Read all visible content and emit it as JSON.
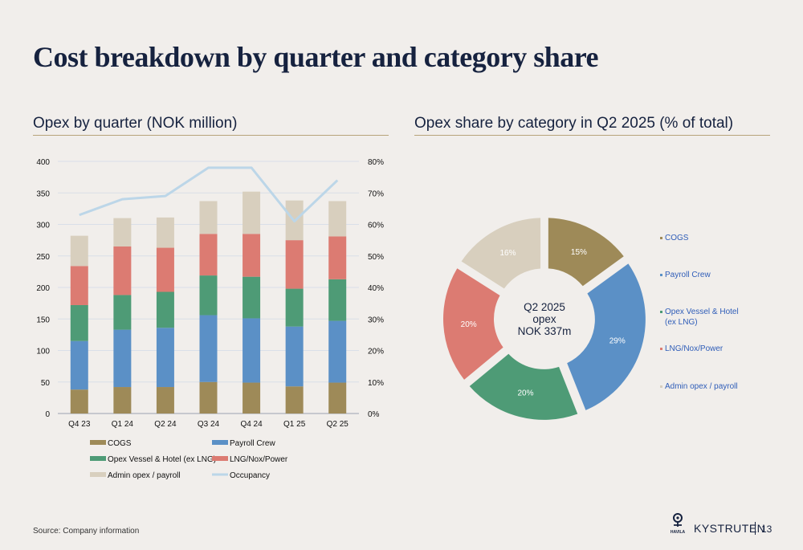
{
  "page": {
    "title": "Cost breakdown by quarter and category share",
    "source": "Source: Company information",
    "brand": "KYSTRUTEN",
    "brand_small": "HAVILA",
    "page_number": "13"
  },
  "colors": {
    "cogs": "#9e8a58",
    "payroll": "#5b90c6",
    "opex_vessel": "#4e9b76",
    "lng": "#dc7b72",
    "admin": "#d8cfbe",
    "occupancy": "#bcd6e8",
    "grid": "#d9dfe8",
    "navy": "#16223f",
    "legend_text": "#2f5db8"
  },
  "chart_data": [
    {
      "type": "bar",
      "stacked": true,
      "title": "Opex by quarter (NOK million)",
      "categories": [
        "Q4 23",
        "Q1 24",
        "Q2 24",
        "Q3 24",
        "Q4 24",
        "Q1 25",
        "Q2 25"
      ],
      "ylim": [
        0,
        400
      ],
      "yticks": [
        "0",
        "50",
        "100",
        "150",
        "200",
        "250",
        "300",
        "350",
        "400"
      ],
      "y2lim": [
        0,
        80
      ],
      "y2ticks": [
        "0%",
        "10%",
        "20%",
        "30%",
        "40%",
        "50%",
        "60%",
        "70%",
        "80%"
      ],
      "grid": true,
      "series": [
        {
          "name": "COGS",
          "key": "cogs",
          "values": [
            38,
            42,
            42,
            50,
            49,
            43,
            49
          ]
        },
        {
          "name": "Payroll Crew",
          "key": "payroll",
          "values": [
            77,
            91,
            94,
            106,
            102,
            95,
            98
          ]
        },
        {
          "name": "Opex Vessel & Hotel (ex LNG)",
          "key": "opex_vessel",
          "values": [
            57,
            55,
            57,
            63,
            66,
            60,
            66
          ]
        },
        {
          "name": "LNG/Nox/Power",
          "key": "lng",
          "values": [
            62,
            77,
            70,
            66,
            68,
            77,
            68
          ]
        },
        {
          "name": "Admin opex / payroll",
          "key": "admin",
          "values": [
            48,
            45,
            48,
            52,
            67,
            63,
            56
          ]
        }
      ],
      "line": {
        "name": "Occupancy",
        "key": "occupancy",
        "unit": "%",
        "values": [
          63,
          68,
          69,
          78,
          78,
          61,
          74
        ]
      },
      "legend": [
        "COGS",
        "Payroll Crew",
        "Opex Vessel & Hotel (ex LNG)",
        "LNG/Nox/Power",
        "Admin opex / payroll",
        "Occupancy"
      ]
    },
    {
      "type": "pie",
      "donut": true,
      "title": "Opex share by category in Q2 2025 (% of total)",
      "center_label": [
        "Q2 2025",
        "opex",
        "NOK 337m"
      ],
      "slices": [
        {
          "name": "COGS",
          "key": "cogs",
          "value": 15,
          "label": "15%"
        },
        {
          "name": "Payroll Crew",
          "key": "payroll",
          "value": 29,
          "label": "29%"
        },
        {
          "name": "Opex Vessel & Hotel (ex LNG)",
          "key": "opex_vessel",
          "value": 20,
          "label": "20%",
          "legend_lines": [
            "Opex Vessel & Hotel",
            "(ex LNG)"
          ]
        },
        {
          "name": "LNG/Nox/Power",
          "key": "lng",
          "value": 20,
          "label": "20%"
        },
        {
          "name": "Admin opex / payroll",
          "key": "admin",
          "value": 16,
          "label": "16%"
        }
      ]
    }
  ]
}
